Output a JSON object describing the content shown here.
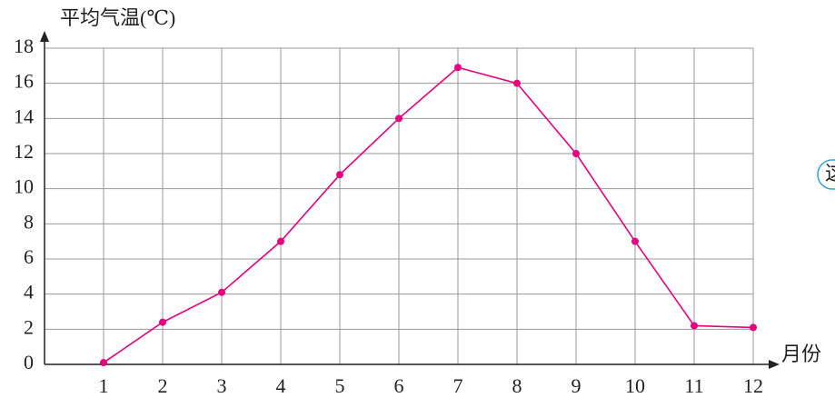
{
  "chart_data": {
    "type": "line",
    "y_label": "平均气温(℃)",
    "x_label": "月份",
    "annotation": "这",
    "x": [
      1,
      2,
      3,
      4,
      5,
      6,
      7,
      8,
      9,
      10,
      11,
      12
    ],
    "series": [
      {
        "color": "#e4007f",
        "values": [
          0.1,
          2.4,
          4.1,
          7.0,
          10.8,
          14.0,
          16.9,
          16.0,
          12.0,
          7.0,
          2.2,
          2.1
        ]
      }
    ],
    "xlim": [
      0,
      12
    ],
    "xticks": [
      1,
      2,
      3,
      4,
      5,
      6,
      7,
      8,
      9,
      10,
      11,
      12
    ],
    "ylim": [
      0,
      18
    ],
    "yticks": [
      0,
      2,
      4,
      6,
      8,
      10,
      12,
      14,
      16,
      18
    ],
    "grid": true
  }
}
